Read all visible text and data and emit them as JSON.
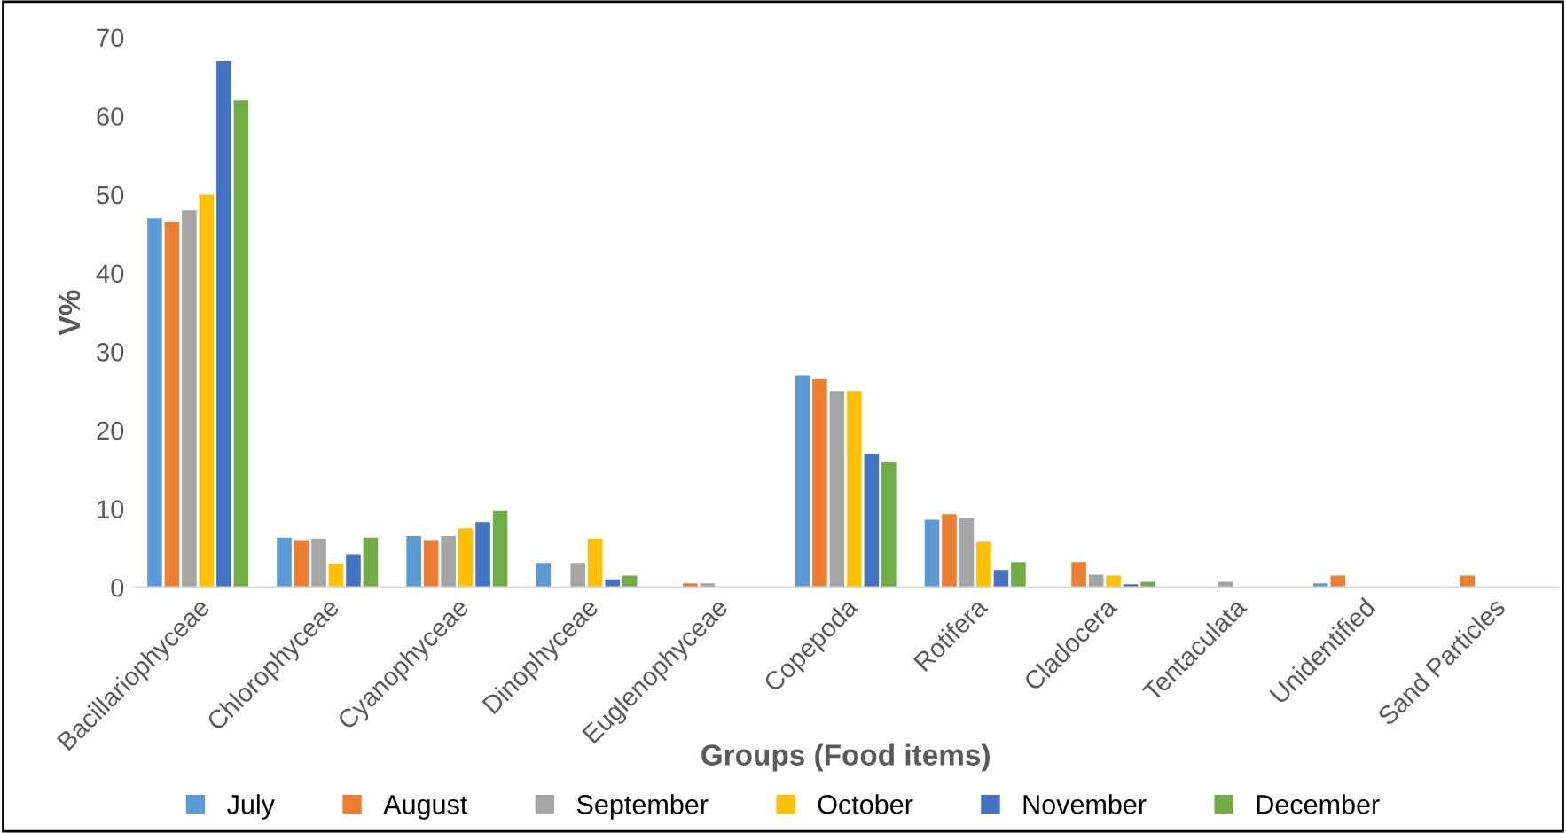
{
  "chart_data": {
    "type": "bar",
    "xlabel": "Groups (Food items)",
    "ylabel": "V%",
    "categories": [
      "Bacillariophyceae",
      "Chlorophyceae",
      "Cyanophyceae",
      "Dinophyceae",
      "Euglenophyceae",
      "Copepoda",
      "Rotifera",
      "Cladocera",
      "Tentaculata",
      "Unidentified",
      "Sand Particles"
    ],
    "series": [
      {
        "name": "July",
        "color": "#5b9bd5",
        "values": [
          47,
          6.3,
          6.5,
          3.1,
          0,
          27,
          8.6,
          0,
          0,
          0.5,
          0
        ]
      },
      {
        "name": "August",
        "color": "#ed7d31",
        "values": [
          46.5,
          6,
          6,
          0,
          0.5,
          26.5,
          9.3,
          3.2,
          0,
          1.5,
          1.5
        ]
      },
      {
        "name": "September",
        "color": "#a5a5a5",
        "values": [
          48,
          6.2,
          6.5,
          3.1,
          0.5,
          25,
          8.8,
          1.6,
          0.7,
          0,
          0
        ]
      },
      {
        "name": "October",
        "color": "#ffc000",
        "values": [
          50,
          3,
          7.5,
          6.2,
          0,
          25,
          5.8,
          1.5,
          0,
          0,
          0
        ]
      },
      {
        "name": "November",
        "color": "#4472c4",
        "values": [
          67,
          4.2,
          8.3,
          1,
          0,
          17,
          2.2,
          0.4,
          0,
          0,
          0
        ]
      },
      {
        "name": "December",
        "color": "#70ad47",
        "values": [
          62,
          6.3,
          9.7,
          1.5,
          0,
          16,
          3.2,
          0.7,
          0,
          0,
          0
        ]
      }
    ],
    "ylim": [
      0,
      70
    ],
    "yticks": [
      0,
      10,
      20,
      30,
      40,
      50,
      60,
      70
    ],
    "grid": false,
    "legend": "bottom"
  }
}
